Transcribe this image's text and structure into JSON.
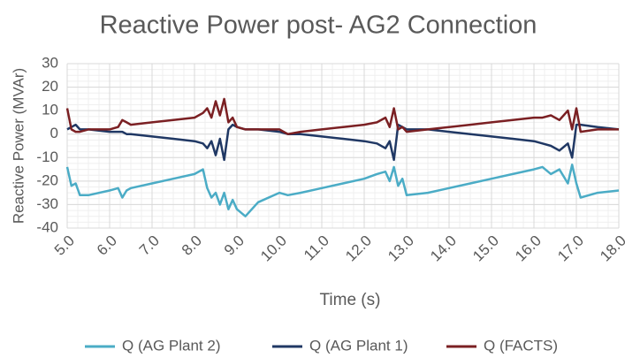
{
  "chart_data": {
    "type": "line",
    "title": "Reactive Power post- AG2 Connection",
    "xlabel": "Time  (s)",
    "ylabel": "Reactive Power (MVAr)",
    "x": [
      5.0,
      5.1,
      5.2,
      5.3,
      5.5,
      6.0,
      6.2,
      6.3,
      6.4,
      6.5,
      7.0,
      7.5,
      8.0,
      8.2,
      8.3,
      8.4,
      8.5,
      8.6,
      8.7,
      8.8,
      8.9,
      9.0,
      9.2,
      9.5,
      10.0,
      10.2,
      10.5,
      11.0,
      11.5,
      12.0,
      12.3,
      12.5,
      12.6,
      12.7,
      12.8,
      12.9,
      13.0,
      13.5,
      14.0,
      14.5,
      15.0,
      15.5,
      16.0,
      16.2,
      16.4,
      16.6,
      16.8,
      16.9,
      17.0,
      17.1,
      17.5,
      18.0
    ],
    "series": [
      {
        "name": "Q (AG Plant 2)",
        "color": "#4bacc6",
        "values": [
          -14,
          -22,
          -21,
          -26,
          -26,
          -24,
          -23,
          -27,
          -24,
          -23,
          -21,
          -19,
          -17,
          -15,
          -23,
          -27,
          -25,
          -30,
          -25,
          -32,
          -28,
          -32,
          -35,
          -29,
          -25,
          -26,
          -25,
          -23,
          -21,
          -19,
          -17,
          -16,
          -20,
          -14,
          -22,
          -19,
          -26,
          -25,
          -23,
          -21,
          -19,
          -17,
          -15,
          -14,
          -17,
          -15,
          -21,
          -13,
          -21,
          -27,
          -25,
          -24
        ]
      },
      {
        "name": "Q (AG Plant 1)",
        "color": "#203864",
        "values": [
          2,
          3,
          4,
          2,
          2,
          1,
          1,
          1,
          0,
          0,
          -1,
          -2,
          -3,
          -4,
          -6,
          -3,
          -9,
          -2,
          -11,
          2,
          4,
          3,
          2,
          2,
          1,
          0,
          0,
          -1,
          -2,
          -3,
          -4,
          -6,
          -3,
          -11,
          4,
          3,
          2,
          2,
          1,
          0,
          -1,
          -2,
          -3,
          -4,
          -5,
          -7,
          -4,
          -10,
          4,
          4,
          3,
          2
        ]
      },
      {
        "name": "Q (FACTS)",
        "color": "#7b2023",
        "values": [
          11,
          2,
          1,
          1,
          2,
          2,
          3,
          6,
          5,
          4,
          5,
          6,
          7,
          9,
          11,
          7,
          14,
          8,
          15,
          5,
          7,
          3,
          2,
          2,
          2,
          0,
          1,
          2,
          3,
          4,
          5,
          7,
          3,
          11,
          2,
          3,
          1,
          2,
          3,
          4,
          5,
          6,
          7,
          7,
          8,
          6,
          10,
          2,
          11,
          1,
          2,
          2
        ]
      }
    ],
    "xlim": [
      5,
      18
    ],
    "xticks": [
      {
        "value": 5,
        "label": "5.0"
      },
      {
        "value": 6,
        "label": "6.0"
      },
      {
        "value": 7,
        "label": "7.0"
      },
      {
        "value": 8,
        "label": "8.0"
      },
      {
        "value": 9,
        "label": "9.0"
      },
      {
        "value": 10,
        "label": "10.0"
      },
      {
        "value": 11,
        "label": "11.0"
      },
      {
        "value": 12,
        "label": "12.0"
      },
      {
        "value": 13,
        "label": "13.0"
      },
      {
        "value": 14,
        "label": "14.0"
      },
      {
        "value": 15,
        "label": "15.0"
      },
      {
        "value": 16,
        "label": "16.0"
      },
      {
        "value": 17,
        "label": "17.0"
      },
      {
        "value": 18,
        "label": "18.0"
      }
    ],
    "ylim": [
      -40,
      30
    ],
    "yticks": [
      -40,
      -30,
      -20,
      -10,
      0,
      10,
      20,
      30
    ],
    "grid": true,
    "legend": "bottom"
  }
}
